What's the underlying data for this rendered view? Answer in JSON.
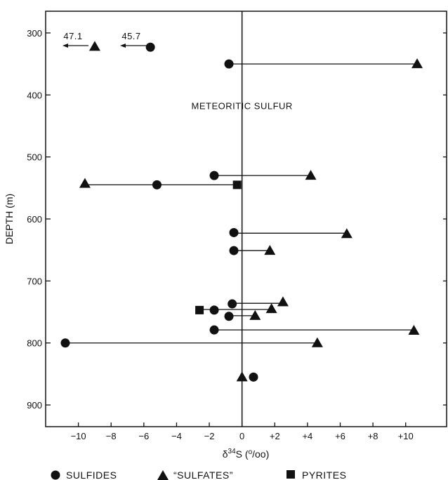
{
  "chart_data": {
    "type": "scatter",
    "title": "",
    "xlabel": "δ34S (o/oo)",
    "ylabel": "DEPTH (m)",
    "xlim": [
      -12,
      12.5
    ],
    "ylim": [
      935,
      265
    ],
    "y_inverted": true,
    "grid": false,
    "x_ticks": [
      -10,
      -8,
      -6,
      -4,
      -2,
      0,
      2,
      4,
      6,
      8,
      10
    ],
    "x_tick_labels": [
      "−10",
      "−8",
      "−6",
      "−4",
      "−2",
      "0",
      "+2",
      "+4",
      "+6",
      "+8",
      "+10"
    ],
    "y_ticks": [
      300,
      400,
      500,
      600,
      700,
      800,
      900
    ],
    "y_tick_labels": [
      "300",
      "400",
      "500",
      "600",
      "700",
      "800",
      "900"
    ],
    "series": [
      {
        "name": "SULFIDES",
        "marker": "circle",
        "points": [
          [
            -5.6,
            323
          ],
          [
            -0.8,
            350
          ],
          [
            -1.7,
            530
          ],
          [
            -5.2,
            545
          ],
          [
            -0.5,
            622
          ],
          [
            -0.5,
            651
          ],
          [
            -0.6,
            737
          ],
          [
            -1.7,
            747
          ],
          [
            -0.8,
            757
          ],
          [
            -1.7,
            779
          ],
          [
            -10.8,
            800
          ],
          [
            0.7,
            855
          ]
        ]
      },
      {
        "name": "\"SULFATES\"",
        "marker": "triangle",
        "points": [
          [
            -9.0,
            322
          ],
          [
            10.7,
            350
          ],
          [
            4.2,
            530
          ],
          [
            -9.6,
            543
          ],
          [
            6.4,
            624
          ],
          [
            1.7,
            651
          ],
          [
            2.5,
            734
          ],
          [
            1.8,
            745
          ],
          [
            0.8,
            756
          ],
          [
            10.5,
            780
          ],
          [
            4.6,
            800
          ],
          [
            0.0,
            855
          ]
        ]
      },
      {
        "name": "PYRITES",
        "marker": "square",
        "points": [
          [
            -0.3,
            545
          ],
          [
            -2.6,
            747
          ]
        ]
      }
    ],
    "connectors": [
      [
        -0.8,
        10.7,
        350
      ],
      [
        -1.7,
        4.2,
        530
      ],
      [
        -9.6,
        -0.3,
        545
      ],
      [
        -0.5,
        6.4,
        623
      ],
      [
        -0.5,
        1.7,
        651
      ],
      [
        -0.6,
        2.5,
        736
      ],
      [
        -2.6,
        1.8,
        746
      ],
      [
        -0.8,
        0.8,
        756
      ],
      [
        -1.7,
        10.5,
        779
      ],
      [
        -10.8,
        4.6,
        800
      ]
    ],
    "annotations": {
      "meteoritic_label": "METEORITIC SULFUR",
      "offscale": [
        {
          "label": "47.1",
          "value": 47.1,
          "depth": 322
        },
        {
          "label": "45.7",
          "value": 45.7,
          "depth": 322
        }
      ]
    },
    "legend": {
      "placement": "bottom",
      "items": [
        {
          "label": "SULFIDES",
          "marker": "circle"
        },
        {
          "label": "“SULFATES”",
          "marker": "triangle"
        },
        {
          "label": "PYRITES",
          "marker": "square"
        }
      ]
    },
    "colors": {
      "ink": "#111111"
    }
  }
}
